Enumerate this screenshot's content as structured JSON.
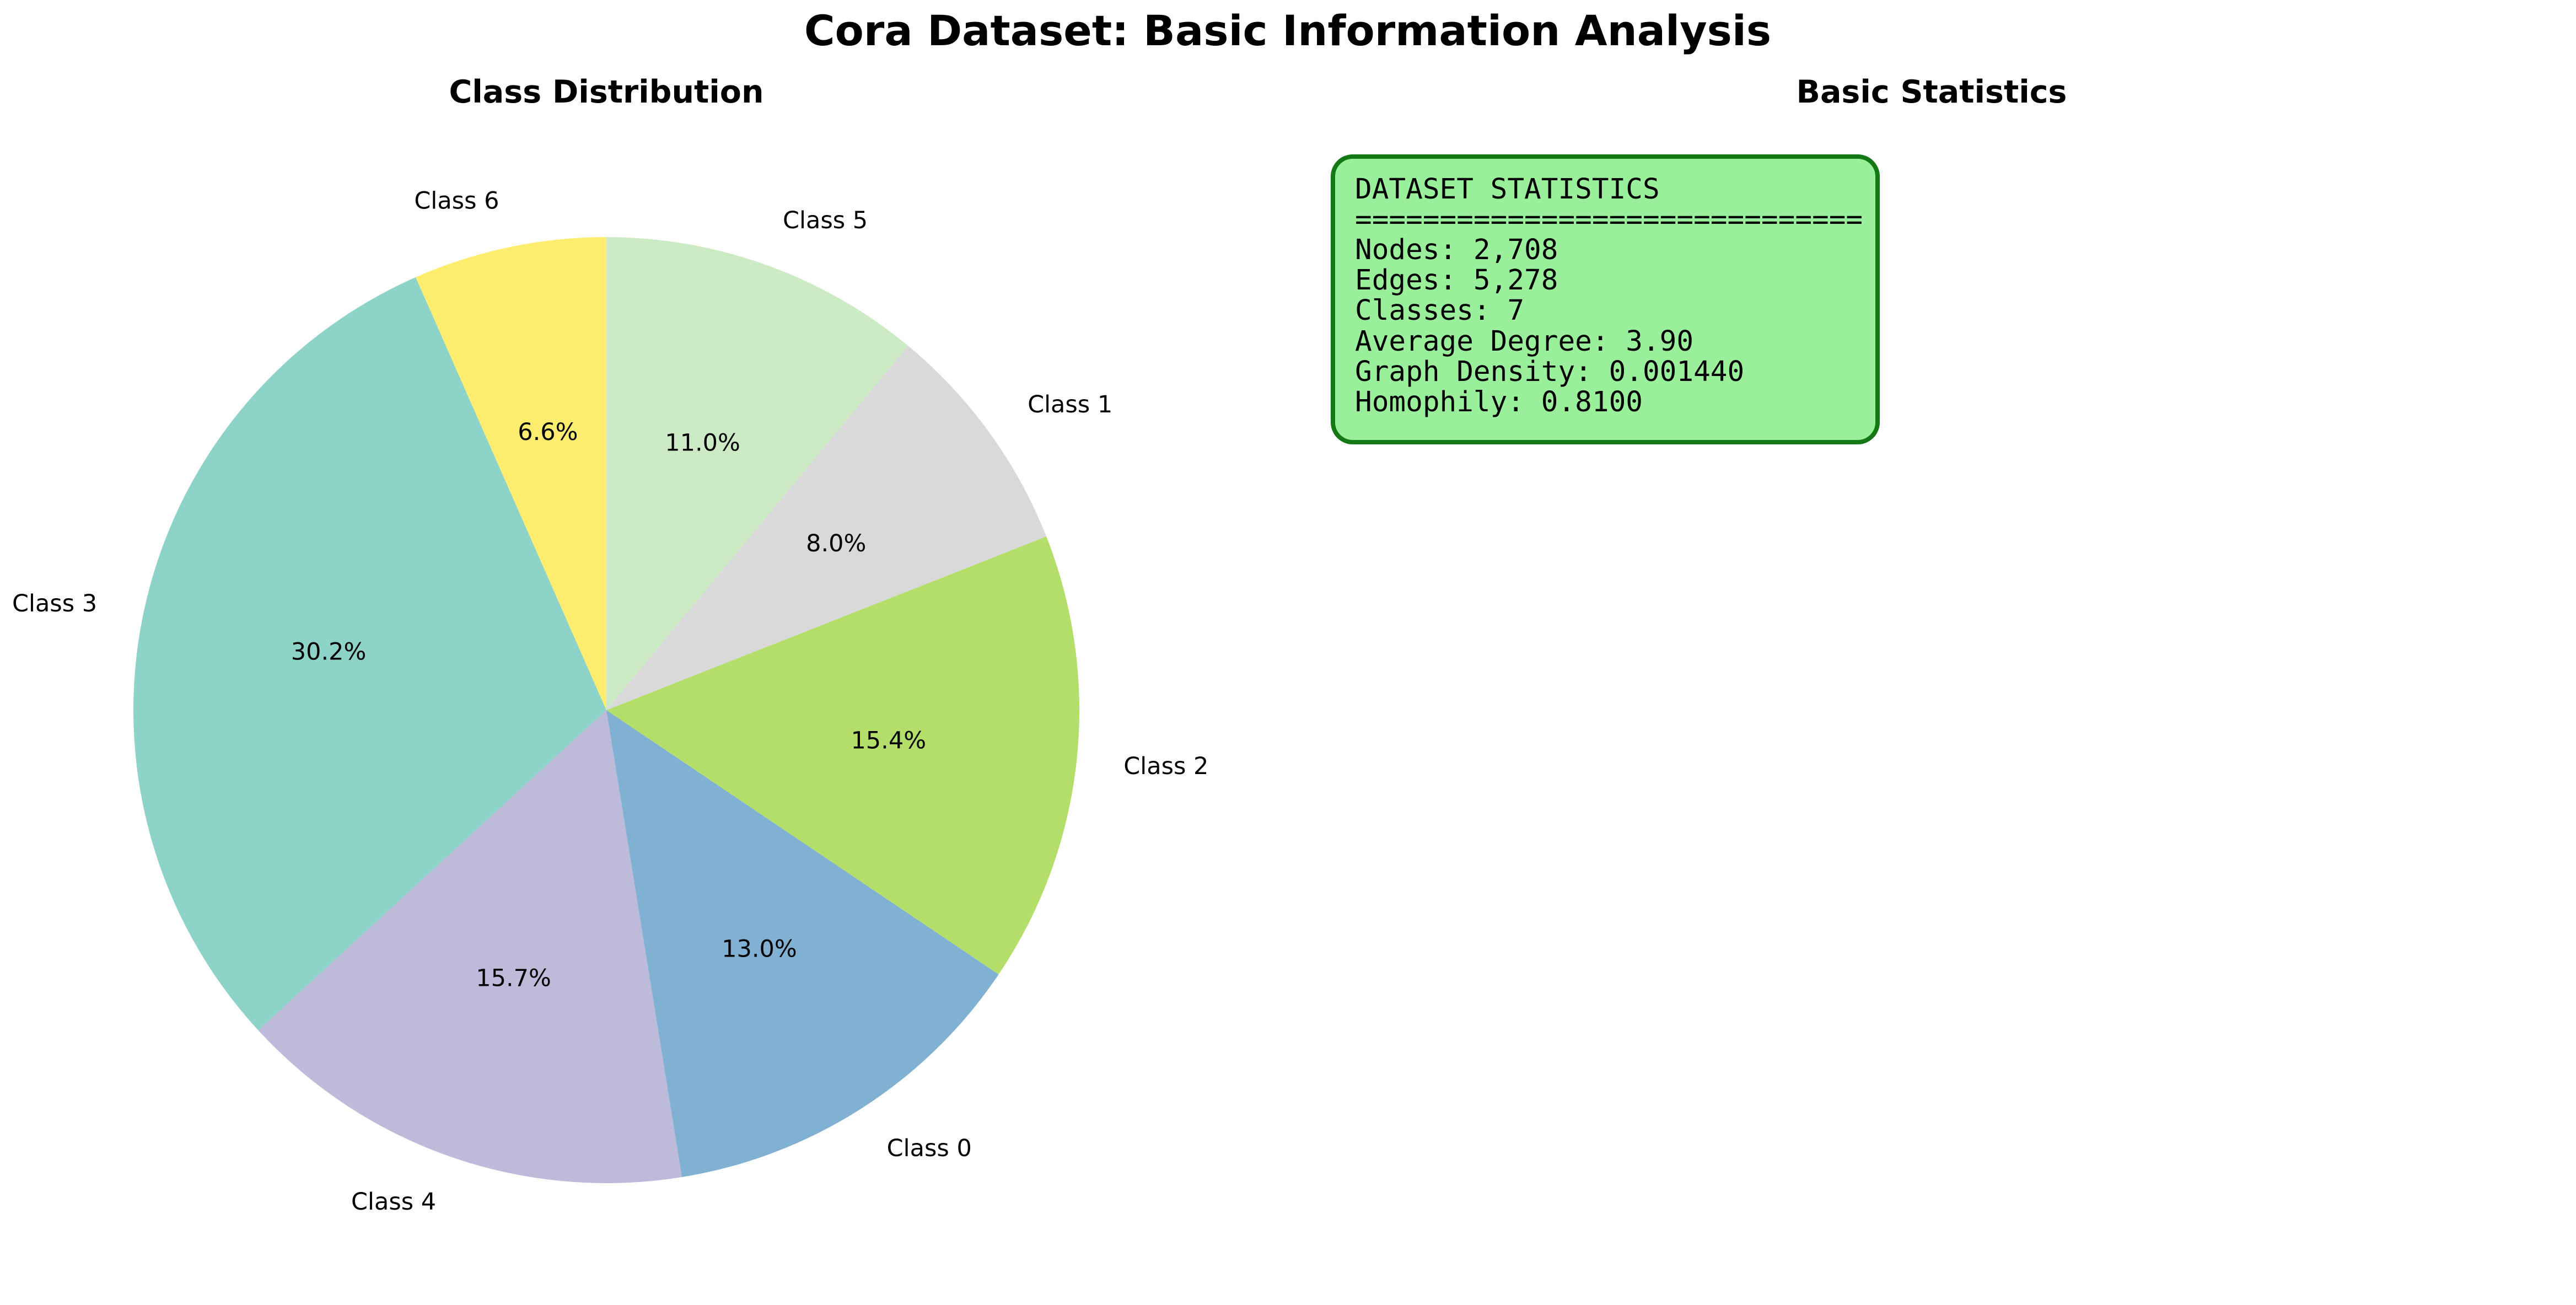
{
  "figure": {
    "title": "Cora Dataset: Basic Information Analysis"
  },
  "chart_data": [
    {
      "type": "pie",
      "title": "Class Distribution",
      "start_angle_deg": 90,
      "direction": "counterclockwise",
      "slices": [
        {
          "label": "Class 6",
          "value": 6.6,
          "pct_label": "6.6%",
          "color": "#ffed6f"
        },
        {
          "label": "Class 3",
          "value": 30.2,
          "pct_label": "30.2%",
          "color": "#8dd3c7"
        },
        {
          "label": "Class 4",
          "value": 15.7,
          "pct_label": "15.7%",
          "color": "#bebada"
        },
        {
          "label": "Class 0",
          "value": 13.0,
          "pct_label": "13.0%",
          "color": "#80b1d3"
        },
        {
          "label": "Class 2",
          "value": 15.4,
          "pct_label": "15.4%",
          "color": "#b3de69"
        },
        {
          "label": "Class 1",
          "value": 8.0,
          "pct_label": "8.0%",
          "color": "#d9d9d9"
        },
        {
          "label": "Class 5",
          "value": 11.0,
          "pct_label": "11.0%",
          "color": "#ccebc5"
        }
      ]
    },
    {
      "type": "table",
      "title": "Basic Statistics",
      "box_fill": "#9af09a",
      "box_edge": "#147814",
      "lines": [
        "DATASET STATISTICS",
        "==============================",
        "Nodes: 2,708",
        "Edges: 5,278",
        "Classes: 7",
        "Average Degree: 3.90",
        "Graph Density: 0.001440",
        "Homophily: 0.8100"
      ]
    }
  ]
}
